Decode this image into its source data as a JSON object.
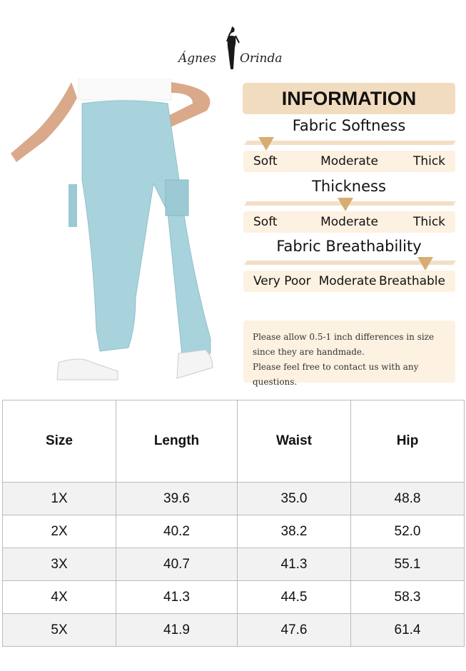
{
  "brand": {
    "logo_text_left": "Ágnes",
    "logo_text_right": "Orinda"
  },
  "info": {
    "title": "INFORMATION",
    "sections": [
      {
        "title": "Fabric Softness",
        "labels": [
          "Soft",
          "Moderate",
          "Thick"
        ],
        "selected": "Soft"
      },
      {
        "title": "Thickness",
        "labels": [
          "Soft",
          "Moderate",
          "Thick"
        ],
        "selected": "Moderate"
      },
      {
        "title": "Fabric Breathability",
        "labels": [
          "Very Poor",
          "Moderate",
          "Breathable"
        ],
        "selected": "Breathable"
      }
    ],
    "note": [
      "Please allow 0.5-1 inch differences in size",
      "since they are handmade.",
      "Please feel free to contact us with any questions."
    ]
  },
  "colors": {
    "accent": "#d8ad74",
    "header_bg": "#f2dcc0",
    "label_bg": "#fdf1e1",
    "pants": "#a9d3dc"
  },
  "size_table": {
    "headers": [
      "Size",
      "Length",
      "Waist",
      "Hip"
    ],
    "rows": [
      [
        "1X",
        "39.6",
        "35.0",
        "48.8"
      ],
      [
        "2X",
        "40.2",
        "38.2",
        "52.0"
      ],
      [
        "3X",
        "40.7",
        "41.3",
        "55.1"
      ],
      [
        "4X",
        "41.3",
        "44.5",
        "58.3"
      ],
      [
        "5X",
        "41.9",
        "47.6",
        "61.4"
      ]
    ]
  }
}
